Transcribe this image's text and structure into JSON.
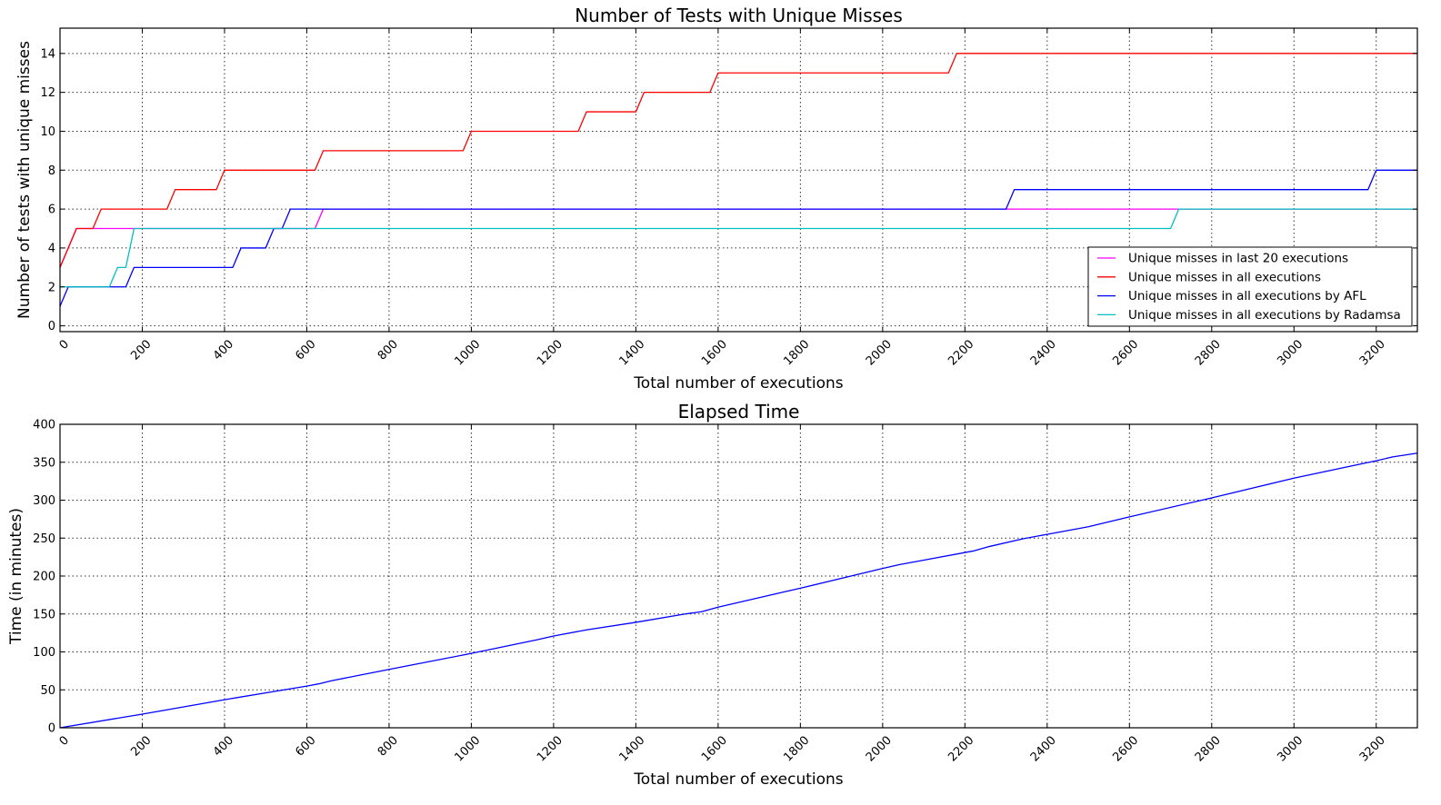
{
  "chart_data": [
    {
      "type": "line",
      "title": "Number of Tests with Unique Misses",
      "xlabel": "Total number of executions",
      "ylabel": "Number of tests with unique misses",
      "xlim": [
        0,
        3300
      ],
      "ylim": [
        -0.3,
        15.3
      ],
      "xticks": [
        0,
        200,
        400,
        600,
        800,
        1000,
        1200,
        1400,
        1600,
        1800,
        2000,
        2200,
        2400,
        2600,
        2800,
        3000,
        3200
      ],
      "yticks": [
        0,
        2,
        4,
        6,
        8,
        10,
        12,
        14
      ],
      "grid": true,
      "legend": "bottom-right",
      "series": [
        {
          "name": "Unique misses in last 20 executions",
          "color": "#ff00ff",
          "x": [
            0,
            40,
            180,
            620,
            640,
            3300
          ],
          "y": [
            3,
            5,
            5,
            5,
            6,
            6
          ]
        },
        {
          "name": "Unique misses in all executions",
          "color": "#ff0000",
          "x": [
            0,
            40,
            80,
            100,
            260,
            280,
            380,
            400,
            620,
            640,
            980,
            1000,
            1260,
            1280,
            1400,
            1420,
            1580,
            1600,
            2160,
            2180,
            3300
          ],
          "y": [
            3,
            5,
            5,
            6,
            6,
            7,
            7,
            8,
            8,
            9,
            9,
            10,
            10,
            11,
            11,
            12,
            12,
            13,
            13,
            14,
            14
          ]
        },
        {
          "name": "Unique misses in all executions by AFL",
          "color": "#0000ff",
          "x": [
            0,
            20,
            160,
            180,
            420,
            440,
            500,
            520,
            540,
            560,
            2300,
            2320,
            3180,
            3200,
            3300
          ],
          "y": [
            1,
            2,
            2,
            3,
            3,
            4,
            4,
            5,
            5,
            6,
            6,
            7,
            7,
            8,
            8
          ]
        },
        {
          "name": "Unique misses in all executions by Radamsa",
          "color": "#00bfbf",
          "x": [
            0,
            20,
            120,
            140,
            160,
            180,
            2700,
            2720,
            3300
          ],
          "y": [
            2,
            2,
            2,
            3,
            3,
            5,
            5,
            6,
            6
          ]
        }
      ]
    },
    {
      "type": "line",
      "title": "Elapsed Time",
      "xlabel": "Total number of executions",
      "ylabel": "Time (in minutes)",
      "xlim": [
        0,
        3300
      ],
      "ylim": [
        0,
        400
      ],
      "xticks": [
        0,
        200,
        400,
        600,
        800,
        1000,
        1200,
        1400,
        1600,
        1800,
        2000,
        2200,
        2400,
        2600,
        2800,
        3000,
        3200
      ],
      "yticks": [
        0,
        50,
        100,
        150,
        200,
        250,
        300,
        350,
        400
      ],
      "grid": true,
      "series": [
        {
          "color": "#0000ff",
          "x": [
            0,
            200,
            400,
            600,
            630,
            660,
            800,
            1000,
            1160,
            1200,
            1280,
            1400,
            1520,
            1560,
            1600,
            1760,
            1800,
            2000,
            2040,
            2100,
            2220,
            2260,
            2340,
            2400,
            2500,
            2600,
            2800,
            3000,
            3200,
            3240,
            3300
          ],
          "y": [
            0,
            18,
            37,
            55,
            58,
            62,
            77,
            98,
            116,
            121,
            129,
            139,
            150,
            153,
            159,
            179,
            184,
            210,
            215,
            221,
            233,
            239,
            249,
            255,
            265,
            278,
            303,
            329,
            352,
            357,
            362
          ]
        }
      ]
    }
  ]
}
